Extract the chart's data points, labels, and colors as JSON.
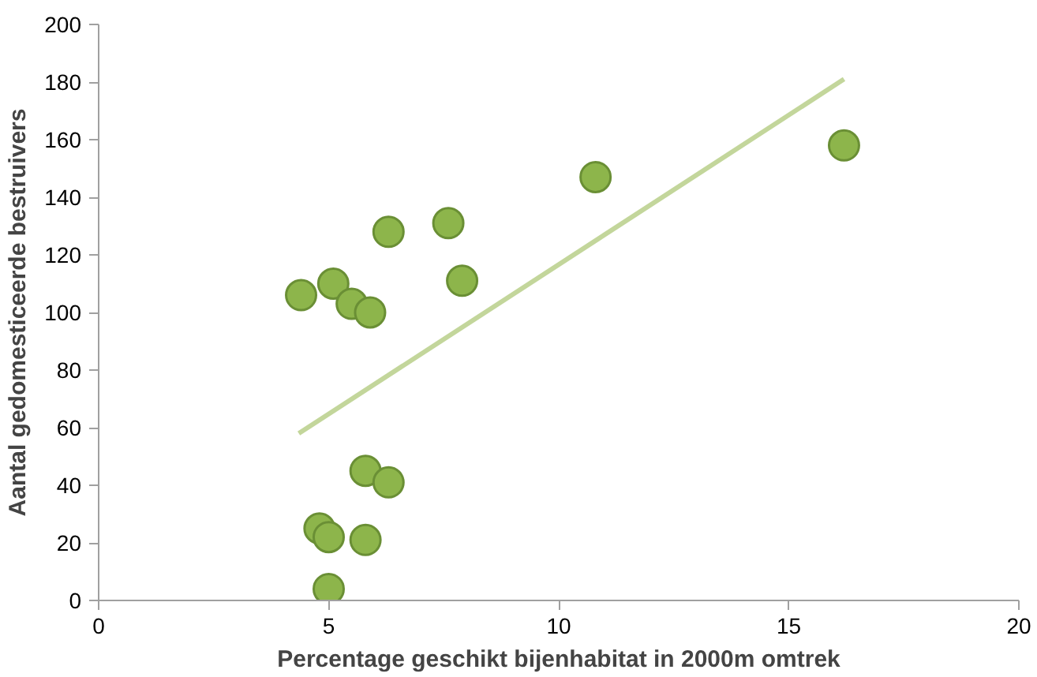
{
  "chart_data": {
    "type": "scatter",
    "xlabel": "Percentage geschikt bijenhabitat in 2000m omtrek",
    "ylabel": "Aantal gedomesticeerde bestruivers",
    "xlim": [
      0,
      20
    ],
    "ylim": [
      0,
      200
    ],
    "xticks": [
      0,
      5,
      10,
      15,
      20
    ],
    "yticks": [
      0,
      20,
      40,
      60,
      80,
      100,
      120,
      140,
      160,
      180,
      200
    ],
    "grid": false,
    "series": [
      {
        "color": "#8db54b",
        "marker": "circle",
        "x": [
          4.4,
          5.1,
          5.5,
          5.9,
          6.3,
          7.6,
          7.9,
          10.8,
          16.2,
          5.8,
          6.3,
          4.8,
          5.0,
          5.8,
          5.0
        ],
        "values": [
          106,
          110,
          103,
          100,
          128,
          131,
          111,
          147,
          158,
          45,
          41,
          25,
          22,
          21,
          4
        ]
      },
      {
        "type": "line",
        "color": "#c3d69b",
        "marker": "none",
        "x": [
          4.35,
          16.2
        ],
        "values": [
          58,
          181
        ]
      }
    ]
  }
}
